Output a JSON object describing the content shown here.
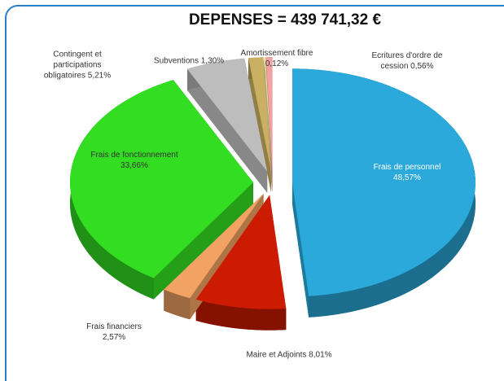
{
  "chart_data": {
    "type": "pie",
    "title": "DEPENSES = 439 741,32 €",
    "categories": [
      "Frais de personnel",
      "Maire et Adjoints",
      "Frais financiers",
      "Frais de fonctionnement",
      "Contingent et participations obligatoires",
      "Subventions",
      "Amortissement fibre",
      "Ecritures d'ordre de cession"
    ],
    "values": [
      48.57,
      8.01,
      2.57,
      33.66,
      5.21,
      1.3,
      0.12,
      0.56
    ],
    "value_labels": [
      "48,57%",
      "8,01%",
      "2,57%",
      "33,66%",
      "5,21%",
      "1,30%",
      "0,12%",
      "0,56%"
    ],
    "colors": [
      "#2aa9da",
      "#cc1b00",
      "#f2a262",
      "#33dd22",
      "#bdbdbd",
      "#c9b063",
      "#efe0a2",
      "#f3a2a2"
    ]
  }
}
